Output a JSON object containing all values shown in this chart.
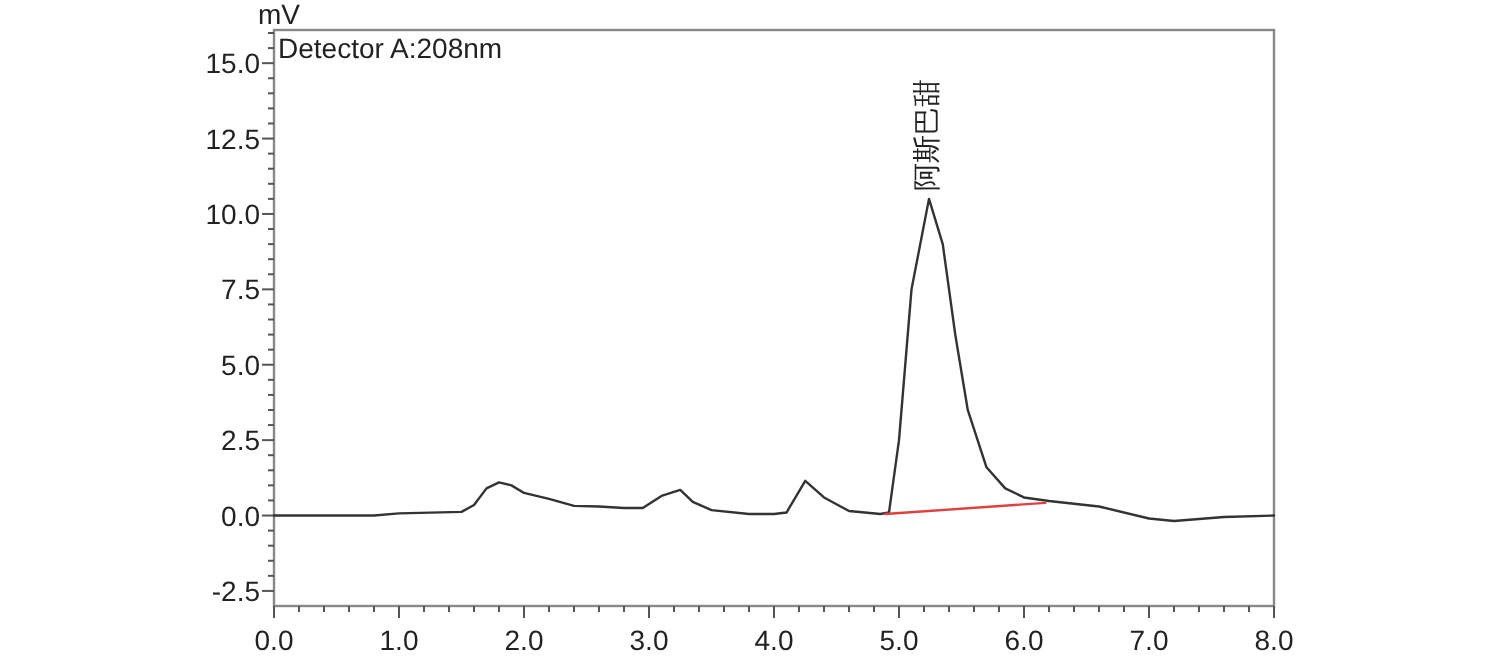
{
  "chart_data": {
    "type": "line",
    "ylabel": "mV",
    "xlim": [
      0,
      8
    ],
    "ylim": [
      -3.0,
      16.1
    ],
    "xticks": [
      {
        "value": 0,
        "label": "0.0"
      },
      {
        "value": 0.2,
        "label": null
      },
      {
        "value": 0.4,
        "label": null
      },
      {
        "value": 0.6,
        "label": null
      },
      {
        "value": 0.8,
        "label": null
      },
      {
        "value": 1,
        "label": "1.0"
      },
      {
        "value": 1.2,
        "label": null
      },
      {
        "value": 1.4,
        "label": null
      },
      {
        "value": 1.6,
        "label": null
      },
      {
        "value": 1.8,
        "label": null
      },
      {
        "value": 2,
        "label": "2.0"
      },
      {
        "value": 2.2,
        "label": null
      },
      {
        "value": 2.4,
        "label": null
      },
      {
        "value": 2.6,
        "label": null
      },
      {
        "value": 2.8,
        "label": null
      },
      {
        "value": 3,
        "label": "3.0"
      },
      {
        "value": 3.2,
        "label": null
      },
      {
        "value": 3.4,
        "label": null
      },
      {
        "value": 3.6,
        "label": null
      },
      {
        "value": 3.8,
        "label": null
      },
      {
        "value": 4,
        "label": "4.0"
      },
      {
        "value": 4.2,
        "label": null
      },
      {
        "value": 4.4,
        "label": null
      },
      {
        "value": 4.6,
        "label": null
      },
      {
        "value": 4.8,
        "label": null
      },
      {
        "value": 5,
        "label": "5.0"
      },
      {
        "value": 5.2,
        "label": null
      },
      {
        "value": 5.4,
        "label": null
      },
      {
        "value": 5.6,
        "label": null
      },
      {
        "value": 5.8,
        "label": null
      },
      {
        "value": 6,
        "label": "6.0"
      },
      {
        "value": 6.2,
        "label": null
      },
      {
        "value": 6.4,
        "label": null
      },
      {
        "value": 6.6,
        "label": null
      },
      {
        "value": 6.8,
        "label": null
      },
      {
        "value": 7,
        "label": "7.0"
      },
      {
        "value": 7.2,
        "label": null
      },
      {
        "value": 7.4,
        "label": null
      },
      {
        "value": 7.6,
        "label": null
      },
      {
        "value": 7.8,
        "label": null
      },
      {
        "value": 8,
        "label": "8.0"
      }
    ],
    "yticks": [
      {
        "value": -2.5,
        "label": "-2.5"
      },
      {
        "value": -2,
        "label": null
      },
      {
        "value": -1.5,
        "label": null
      },
      {
        "value": -1,
        "label": null
      },
      {
        "value": -0.5,
        "label": null
      },
      {
        "value": 0,
        "label": "0.0"
      },
      {
        "value": 0.5,
        "label": null
      },
      {
        "value": 1,
        "label": null
      },
      {
        "value": 1.5,
        "label": null
      },
      {
        "value": 2,
        "label": null
      },
      {
        "value": 2.5,
        "label": "2.5"
      },
      {
        "value": 3,
        "label": null
      },
      {
        "value": 3.5,
        "label": null
      },
      {
        "value": 4,
        "label": null
      },
      {
        "value": 4.5,
        "label": null
      },
      {
        "value": 5,
        "label": "5.0"
      },
      {
        "value": 5.5,
        "label": null
      },
      {
        "value": 6,
        "label": null
      },
      {
        "value": 6.5,
        "label": null
      },
      {
        "value": 7,
        "label": null
      },
      {
        "value": 7.5,
        "label": "7.5"
      },
      {
        "value": 8,
        "label": null
      },
      {
        "value": 8.5,
        "label": null
      },
      {
        "value": 9,
        "label": null
      },
      {
        "value": 9.5,
        "label": null
      },
      {
        "value": 10,
        "label": "10.0"
      },
      {
        "value": 10.5,
        "label": null
      },
      {
        "value": 11,
        "label": null
      },
      {
        "value": 11.5,
        "label": null
      },
      {
        "value": 12,
        "label": null
      },
      {
        "value": 12.5,
        "label": "12.5"
      },
      {
        "value": 13,
        "label": null
      },
      {
        "value": 13.5,
        "label": null
      },
      {
        "value": 14,
        "label": null
      },
      {
        "value": 14.5,
        "label": null
      },
      {
        "value": 15,
        "label": "15.0"
      },
      {
        "value": 15.5,
        "label": null
      },
      {
        "value": 16,
        "label": null
      }
    ],
    "grid": false,
    "line_style": "solid",
    "marker": "none",
    "annotations": [
      "Detector A:208nm",
      {
        "text": "阿斯巴甜",
        "x": 5.24,
        "y": 10.5
      }
    ],
    "series": [
      {
        "color": "#333333",
        "x": [
          0,
          0.8,
          1.0,
          1.5,
          1.6,
          1.7,
          1.8,
          1.9,
          2.0,
          2.2,
          2.4,
          2.6,
          2.8,
          2.95,
          3.1,
          3.25,
          3.35,
          3.5,
          3.8,
          4.0,
          4.1,
          4.25,
          4.4,
          4.6,
          4.85,
          4.92,
          5.0,
          5.1,
          5.24,
          5.35,
          5.45,
          5.55,
          5.7,
          5.85,
          6.0,
          6.2,
          6.6,
          7.0,
          7.2,
          7.6,
          8.0
        ],
        "values": [
          0,
          0,
          0.07,
          0.12,
          0.35,
          0.9,
          1.1,
          1.0,
          0.75,
          0.55,
          0.32,
          0.3,
          0.25,
          0.25,
          0.65,
          0.85,
          0.45,
          0.18,
          0.05,
          0.05,
          0.1,
          1.15,
          0.6,
          0.15,
          0.05,
          0.1,
          2.5,
          7.5,
          10.5,
          9.0,
          6.0,
          3.5,
          1.6,
          0.9,
          0.6,
          0.48,
          0.3,
          -0.1,
          -0.18,
          -0.05,
          0
        ]
      },
      {
        "color": "#e04040",
        "x": [
          4.89,
          6.17
        ],
        "values": [
          0.05,
          0.42
        ]
      }
    ]
  }
}
